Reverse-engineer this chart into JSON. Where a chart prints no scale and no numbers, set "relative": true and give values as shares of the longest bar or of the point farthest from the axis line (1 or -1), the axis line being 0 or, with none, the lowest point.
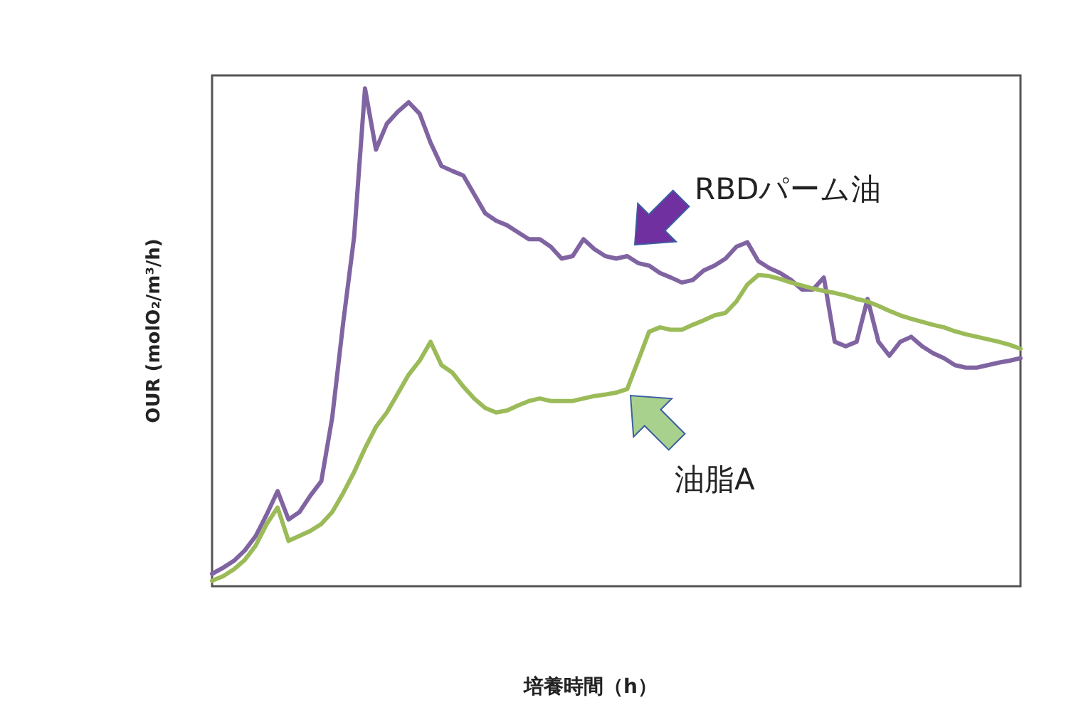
{
  "chart_data": {
    "type": "line",
    "relative": true,
    "xlabel": "培養時間（h）",
    "ylabel": "OUR (molO₂/m³/h)",
    "grid": false,
    "legend": false,
    "marker": "none",
    "line_style": "solid",
    "categories": [
      null,
      null,
      null,
      null,
      null,
      null,
      null,
      null,
      null,
      null,
      null,
      null,
      null,
      null,
      null,
      null,
      null,
      null,
      null,
      null,
      null,
      null,
      null,
      null,
      null,
      null,
      null,
      null,
      null,
      null,
      null,
      null,
      null,
      null,
      null,
      null,
      null,
      null,
      null,
      null,
      null,
      null,
      null,
      null,
      null,
      null,
      null,
      null,
      null,
      null,
      null,
      null,
      null,
      null,
      null,
      null,
      null,
      null,
      null,
      null,
      null,
      null,
      null,
      null,
      null,
      null,
      null,
      null,
      null,
      null,
      null,
      null,
      null,
      null,
      null
    ],
    "series": [
      {
        "name": "RBDパーム油",
        "color": "#8064a2",
        "values": [
          0.025,
          0.037,
          0.051,
          0.072,
          0.101,
          0.144,
          0.191,
          0.134,
          0.149,
          0.182,
          0.211,
          0.339,
          0.529,
          0.701,
          1,
          0.877,
          0.929,
          0.953,
          0.972,
          0.949,
          0.891,
          0.844,
          0.834,
          0.825,
          0.787,
          0.749,
          0.734,
          0.725,
          0.711,
          0.697,
          0.697,
          0.682,
          0.658,
          0.663,
          0.697,
          0.677,
          0.663,
          0.658,
          0.663,
          0.649,
          0.644,
          0.629,
          0.62,
          0.61,
          0.615,
          0.634,
          0.644,
          0.658,
          0.682,
          0.691,
          0.653,
          0.639,
          0.629,
          0.615,
          0.596,
          0.596,
          0.62,
          0.491,
          0.482,
          0.491,
          0.577,
          0.491,
          0.463,
          0.491,
          0.501,
          0.482,
          0.468,
          0.458,
          0.444,
          0.439,
          0.439,
          0.444,
          0.449,
          0.453,
          0.458
        ]
      },
      {
        "name": "油脂A",
        "color": "#9bbb59",
        "values": [
          0.011,
          0.02,
          0.034,
          0.053,
          0.082,
          0.125,
          0.158,
          0.091,
          0.101,
          0.111,
          0.125,
          0.149,
          0.187,
          0.229,
          0.277,
          0.32,
          0.349,
          0.387,
          0.425,
          0.453,
          0.491,
          0.444,
          0.429,
          0.401,
          0.377,
          0.358,
          0.349,
          0.353,
          0.363,
          0.372,
          0.377,
          0.372,
          0.372,
          0.372,
          0.377,
          0.382,
          0.385,
          0.389,
          0.396,
          0.453,
          0.511,
          0.52,
          0.515,
          0.515,
          0.525,
          0.534,
          0.544,
          0.549,
          0.572,
          0.606,
          0.625,
          0.623,
          0.617,
          0.61,
          0.604,
          0.598,
          0.593,
          0.589,
          0.584,
          0.577,
          0.572,
          0.563,
          0.553,
          0.544,
          0.537,
          0.531,
          0.525,
          0.52,
          0.512,
          0.506,
          0.501,
          0.496,
          0.491,
          0.485,
          0.477
        ]
      }
    ]
  }
}
